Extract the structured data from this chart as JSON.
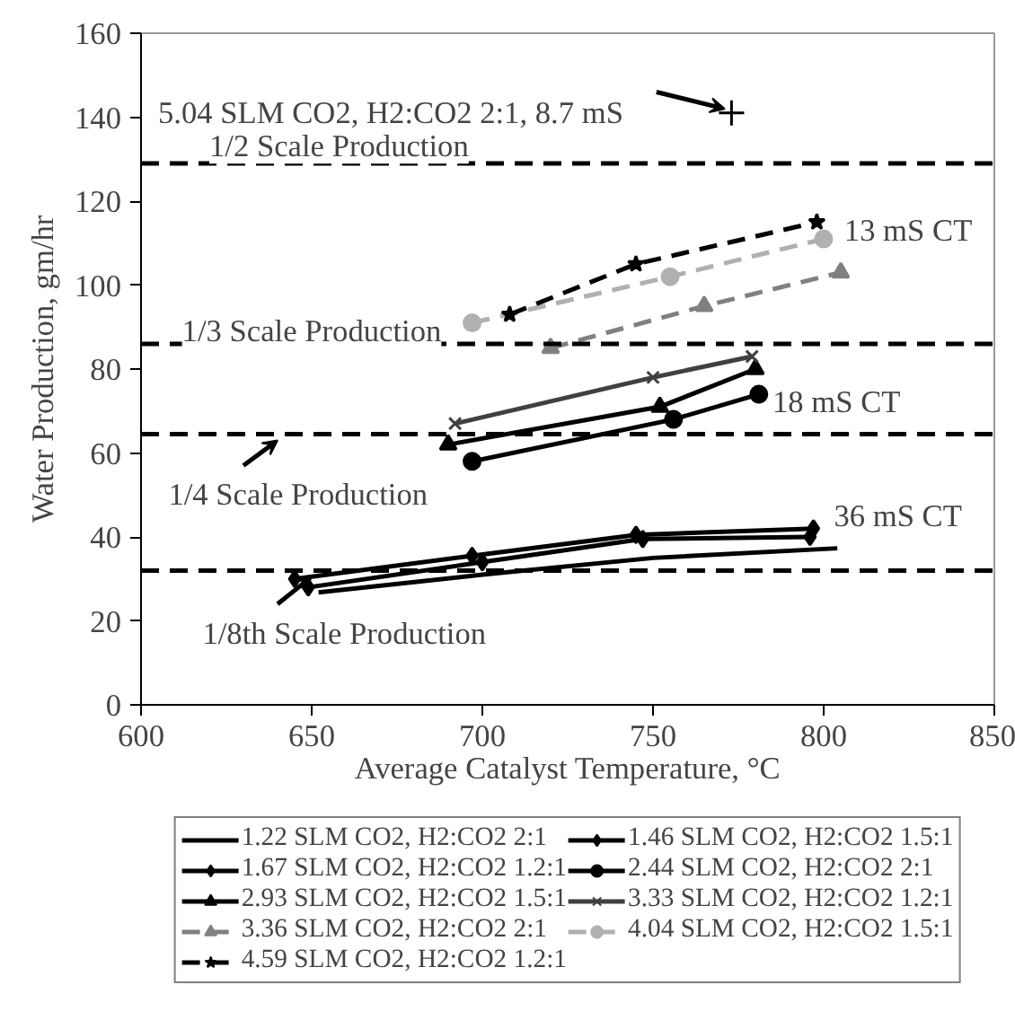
{
  "chart_data": {
    "type": "line",
    "xlabel": "Average Catalyst Temperature, °C",
    "ylabel": "Water Production, gm/hr",
    "xlim": [
      600,
      850
    ],
    "xticks": [
      600,
      650,
      700,
      750,
      800,
      850
    ],
    "ylim": [
      0,
      160
    ],
    "yticks": [
      0,
      20,
      40,
      60,
      80,
      100,
      120,
      140,
      160
    ],
    "grid": false,
    "legend": "bottom",
    "series": [
      {
        "name": "1.22 SLM CO2, H2:CO2 2:1",
        "color": "#000000",
        "marker": "none",
        "line_style": "solid",
        "x": [
          652,
          700,
          750,
          804
        ],
        "values": [
          26.8,
          31,
          35,
          37.3
        ]
      },
      {
        "name": "1.46 SLM CO2, H2:CO2 1.5:1",
        "color": "#000000",
        "marker": "diamond",
        "line_style": "solid",
        "x": [
          649,
          700,
          747,
          796
        ],
        "values": [
          28,
          34,
          39.5,
          40
        ]
      },
      {
        "name": "1.67 SLM CO2, H2:CO2 1.2:1",
        "color": "#000000",
        "marker": "diamond",
        "line_style": "solid",
        "x": [
          645,
          697,
          745,
          797
        ],
        "values": [
          30,
          35.5,
          40.5,
          42
        ]
      },
      {
        "name": "2.44 SLM CO2, H2:CO2 2:1",
        "color": "#000000",
        "marker": "circle",
        "line_style": "solid",
        "x": [
          697,
          756,
          781
        ],
        "values": [
          58,
          68,
          74
        ]
      },
      {
        "name": "2.93 SLM CO2, H2:CO2 1.5:1",
        "color": "#000000",
        "marker": "triangle",
        "line_style": "solid",
        "x": [
          690,
          752,
          780
        ],
        "values": [
          62,
          71,
          80
        ]
      },
      {
        "name": "3.33 SLM CO2, H2:CO2 1.2:1",
        "color": "#404040",
        "marker": "cross",
        "line_style": "solid",
        "x": [
          692,
          750,
          779
        ],
        "values": [
          67,
          78,
          83
        ]
      },
      {
        "name": "3.36 SLM CO2, H2:CO2 2:1",
        "color": "#808080",
        "marker": "triangle",
        "line_style": "dashed",
        "x": [
          720,
          765,
          805
        ],
        "values": [
          85,
          95,
          103
        ]
      },
      {
        "name": "4.04 SLM CO2, H2:CO2 1.5:1",
        "color": "#b0b0b0",
        "marker": "circle",
        "line_style": "dashed",
        "x": [
          697,
          755,
          800
        ],
        "values": [
          91,
          102,
          111
        ]
      },
      {
        "name": "4.59 SLM CO2, H2:CO2 1.2:1",
        "color": "#000000",
        "marker": "star",
        "line_style": "dashed",
        "x": [
          708,
          745,
          798
        ],
        "values": [
          93,
          105,
          115
        ]
      },
      {
        "type": "scatter",
        "color": "#000000",
        "marker": "cross",
        "x": [
          773
        ],
        "values": [
          141
        ]
      }
    ],
    "ref_lines": [
      {
        "axis": "y",
        "value": 129,
        "label": "1/2 Scale Production",
        "color": "#000000",
        "line_style": "dashed"
      },
      {
        "axis": "y",
        "value": 86,
        "label": "1/3 Scale Production",
        "color": "#000000",
        "line_style": "dashed"
      },
      {
        "axis": "y",
        "value": 64.5,
        "label": "1/4 Scale Production",
        "color": "#000000",
        "line_style": "dashed"
      },
      {
        "axis": "y",
        "value": 32,
        "label": "1/8th Scale Production",
        "color": "#000000",
        "line_style": "dashed"
      }
    ],
    "annotations": [
      {
        "text": "5.04 SLM CO2, H2:CO2 2:1, 8.7 mS",
        "x": 773,
        "y": 141
      },
      "13 mS CT",
      "18 mS CT",
      "36 mS CT"
    ]
  }
}
